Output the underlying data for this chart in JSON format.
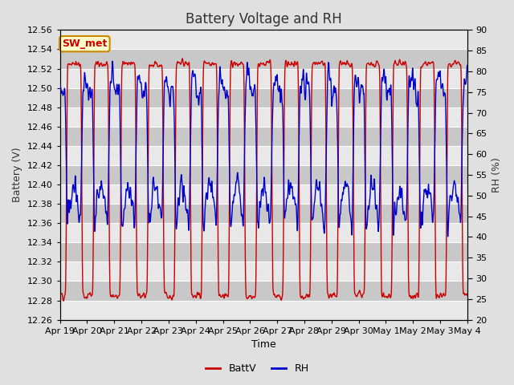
{
  "title": "Battery Voltage and RH",
  "xlabel": "Time",
  "ylabel_left": "Battery (V)",
  "ylabel_right": "RH (%)",
  "ylim_left": [
    12.26,
    12.56
  ],
  "ylim_right": [
    20,
    90
  ],
  "yticks_left": [
    12.26,
    12.28,
    12.3,
    12.32,
    12.34,
    12.36,
    12.38,
    12.4,
    12.42,
    12.44,
    12.46,
    12.48,
    12.5,
    12.52,
    12.54,
    12.56
  ],
  "yticks_right": [
    20,
    25,
    30,
    35,
    40,
    45,
    50,
    55,
    60,
    65,
    70,
    75,
    80,
    85,
    90
  ],
  "xtick_labels": [
    "Apr 19",
    "Apr 20",
    "Apr 21",
    "Apr 22",
    "Apr 23",
    "Apr 24",
    "Apr 25",
    "Apr 26",
    "Apr 27",
    "Apr 28",
    "Apr 29",
    "Apr 30",
    "May 1",
    "May 2",
    "May 3",
    "May 4"
  ],
  "legend_labels": [
    "BattV",
    "RH"
  ],
  "legend_colors": [
    "#cc0000",
    "#0000cc"
  ],
  "bg_color": "#e0e0e0",
  "plot_bg_color": "#d0d0d0",
  "band_color_light": "#e8e8e8",
  "band_color_dark": "#c8c8c8",
  "line_color_batt": "#cc0000",
  "line_color_rh": "#0000cc",
  "annotation_text": "SW_met",
  "annotation_bg": "#ffffcc",
  "annotation_border": "#cc8800",
  "annotation_text_color": "#cc0000",
  "title_color": "#333333",
  "grid_color": "#ffffff",
  "title_fontsize": 12,
  "axis_label_fontsize": 9,
  "tick_fontsize": 8
}
